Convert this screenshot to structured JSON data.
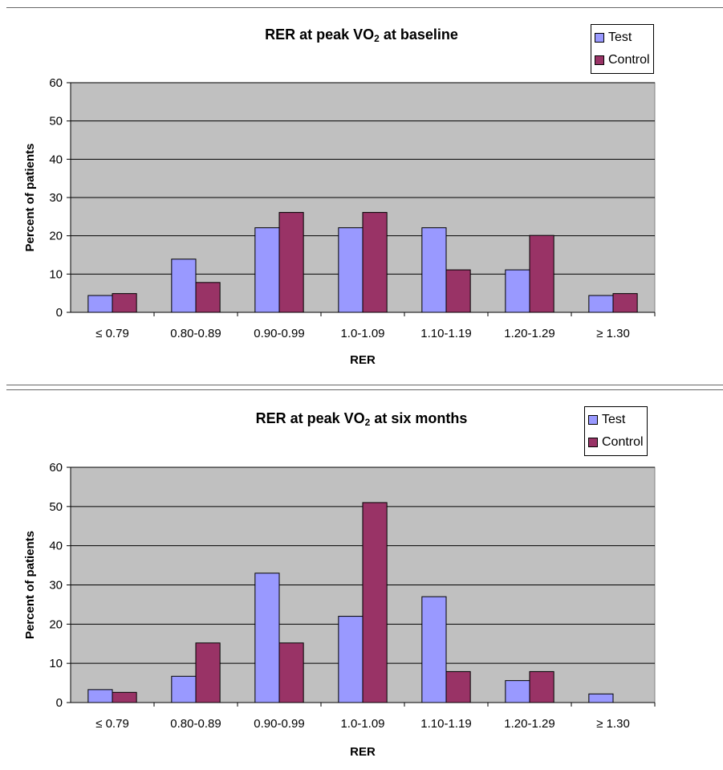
{
  "chart_data": [
    {
      "type": "bar",
      "title_main": "RER at peak VO",
      "title_sub": "2",
      "title_rest": " at baseline",
      "xlabel": "RER",
      "ylabel": "Percent of patients",
      "ylim": [
        0,
        60
      ],
      "yticks": [
        "0",
        "10",
        "20",
        "30",
        "40",
        "50",
        "60"
      ],
      "grid": true,
      "legend_position": "top-right",
      "categories": [
        "≤ 0.79",
        "0.80-0.89",
        "0.90-0.99",
        "1.0-1.09",
        "1.10-1.19",
        "1.20-1.29",
        "≥ 1.30"
      ],
      "series": [
        {
          "name": "Test",
          "color": "#9999ff",
          "values": [
            4.4,
            13.9,
            22.1,
            22.1,
            22.1,
            11.1,
            4.4
          ]
        },
        {
          "name": "Control",
          "color": "#993366",
          "values": [
            4.9,
            7.8,
            26.1,
            26.1,
            11.1,
            20.1,
            4.9
          ]
        }
      ]
    },
    {
      "type": "bar",
      "title_main": "RER at peak VO",
      "title_sub": "2",
      "title_rest": " at six months",
      "xlabel": "RER",
      "ylabel": "Percent of patients",
      "ylim": [
        0,
        60
      ],
      "yticks": [
        "0",
        "10",
        "20",
        "30",
        "40",
        "50",
        "60"
      ],
      "grid": true,
      "legend_position": "top-right",
      "categories": [
        "≤ 0.79",
        "0.80-0.89",
        "0.90-0.99",
        "1.0-1.09",
        "1.10-1.19",
        "1.20-1.29",
        "≥ 1.30"
      ],
      "series": [
        {
          "name": "Test",
          "color": "#9999ff",
          "values": [
            3.3,
            6.7,
            33.0,
            22.0,
            27.0,
            5.6,
            2.2
          ]
        },
        {
          "name": "Control",
          "color": "#993366",
          "values": [
            2.6,
            15.2,
            15.2,
            51.0,
            7.9,
            7.9,
            0
          ]
        }
      ]
    }
  ],
  "plot_background": "#c0c0c0"
}
